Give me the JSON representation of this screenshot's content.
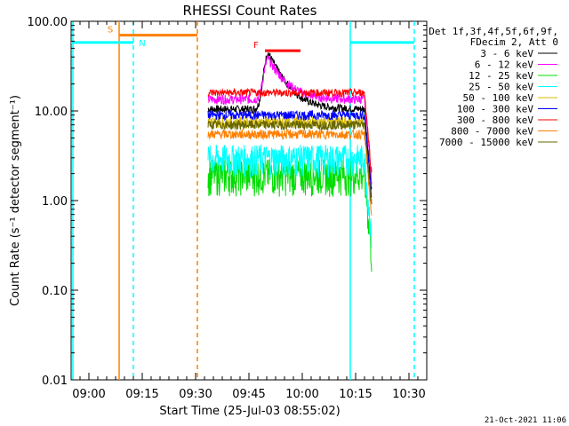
{
  "chart_data": {
    "type": "line",
    "title": "RHESSI Count Rates",
    "xlabel": "Start Time (25-Jul-03 08:55:02)",
    "ylabel": "Count Rate (s⁻¹ detector segment⁻¹)",
    "yscale": "log",
    "ylim": [
      0.01,
      100.0
    ],
    "xlim_minutes": [
      0,
      100
    ],
    "x_ticks": [
      {
        "minute": 5,
        "label": "09:00"
      },
      {
        "minute": 20,
        "label": "09:15"
      },
      {
        "minute": 35,
        "label": "09:30"
      },
      {
        "minute": 50,
        "label": "09:45"
      },
      {
        "minute": 65,
        "label": "10:00"
      },
      {
        "minute": 80,
        "label": "10:15"
      },
      {
        "minute": 95,
        "label": "10:30"
      }
    ],
    "y_ticks": [
      {
        "value": 0.01,
        "label": "0.01"
      },
      {
        "value": 0.1,
        "label": "0.10"
      },
      {
        "value": 1.0,
        "label": "1.00"
      },
      {
        "value": 10.0,
        "label": "10.00"
      },
      {
        "value": 100.0,
        "label": "100.00"
      }
    ],
    "legend_header": [
      "Det 1f,3f,4f,5f,6f,9f,",
      "FDecim 2, Att 0"
    ],
    "data_start_minute": 38.5,
    "data_end_minute": 84.5,
    "series": [
      {
        "name": "3 - 6 keV",
        "color": "#000000",
        "base": 10.5,
        "peak": 44.0
      },
      {
        "name": "6 - 12 keV",
        "color": "#ff00ff",
        "base": 13.5,
        "peak": 38.0
      },
      {
        "name": "12 - 25 keV",
        "color": "#00dd00",
        "base": 2.0,
        "peak": 2.0
      },
      {
        "name": "25 - 50 keV",
        "color": "#00ffff",
        "base": 3.0,
        "peak": 3.0
      },
      {
        "name": "50 - 100 keV",
        "color": "#ddbb00",
        "base": 7.5,
        "peak": 7.5
      },
      {
        "name": "100 - 300 keV",
        "color": "#0000ff",
        "base": 9.0,
        "peak": 9.0
      },
      {
        "name": "300 - 800 keV",
        "color": "#ff0000",
        "base": 16.0,
        "peak": 16.0
      },
      {
        "name": "800 - 7000 keV",
        "color": "#ff8000",
        "base": 5.5,
        "peak": 5.5
      },
      {
        "name": "7000 - 15000 keV",
        "color": "#666600",
        "base": 7.0,
        "peak": 7.0
      }
    ],
    "annotations": [
      {
        "label": "S",
        "color": "#ff8000",
        "start_minute": 13.5,
        "end_minute": 35.5,
        "value": 70.0
      },
      {
        "label": "N",
        "color": "#00ffff",
        "start_minute": 0,
        "end_minute": 17.5,
        "value": 58.0
      },
      {
        "label": "",
        "color": "#00ffff",
        "start_minute": 78.5,
        "end_minute": 96.5,
        "value": 58.0
      },
      {
        "label": "F",
        "color": "#ff0000",
        "start_minute": 54.5,
        "end_minute": 64.5,
        "value": 47.0
      }
    ],
    "vertical_lines": [
      {
        "minute": 13.5,
        "color": "#ff8000",
        "style": "solid"
      },
      {
        "minute": 35.5,
        "color": "#ff8000",
        "style": "dashed"
      },
      {
        "minute": 17.5,
        "color": "#00ffff",
        "style": "dashed"
      },
      {
        "minute": 78.5,
        "color": "#00ffff",
        "style": "solid"
      },
      {
        "minute": 96.5,
        "color": "#00ffff",
        "style": "dashed"
      },
      {
        "minute": 0.5,
        "color": "#00ffff",
        "style": "solid"
      }
    ],
    "footer": "21-Oct-2021 11:06"
  }
}
